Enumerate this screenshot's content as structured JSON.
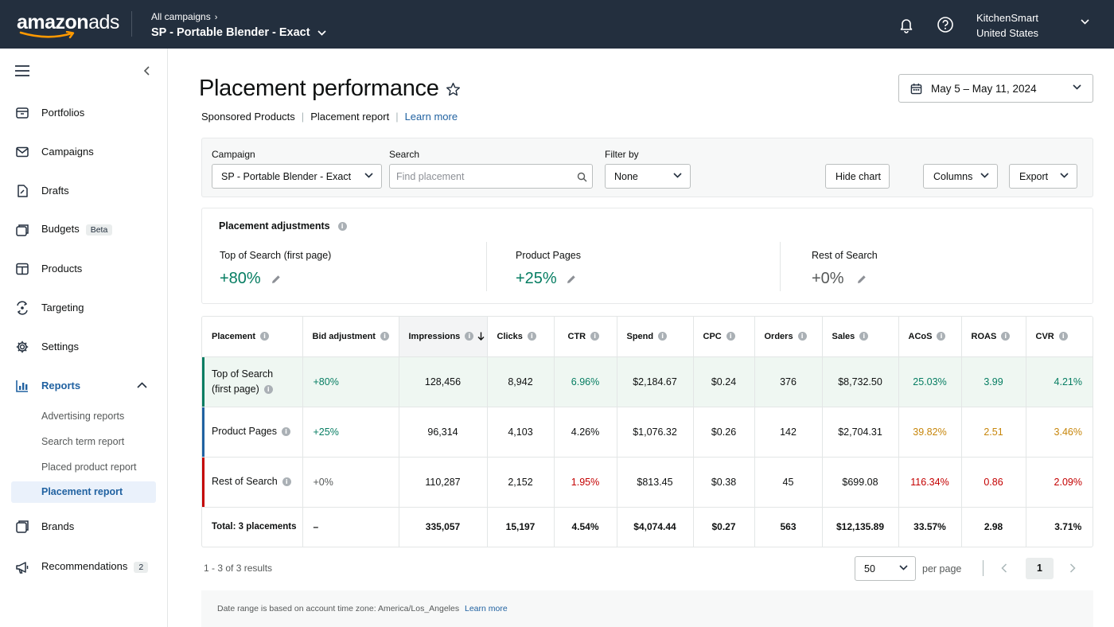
{
  "header": {
    "logo_text": "amazon",
    "logo_suffix": "ads",
    "breadcrumb": "All campaigns",
    "campaign_title": "SP - Portable Blender - Exact",
    "account_name": "KitchenSmart",
    "account_region": "United States"
  },
  "sidebar": {
    "items": [
      {
        "label": "Portfolios",
        "icon": "portfolio-icon"
      },
      {
        "label": "Campaigns",
        "icon": "campaigns-icon"
      },
      {
        "label": "Drafts",
        "icon": "drafts-icon"
      },
      {
        "label": "Budgets",
        "icon": "budgets-icon",
        "badge": "Beta"
      },
      {
        "label": "Products",
        "icon": "products-icon"
      },
      {
        "label": "Targeting",
        "icon": "targeting-icon"
      },
      {
        "label": "Settings",
        "icon": "settings-icon"
      },
      {
        "label": "Reports",
        "icon": "reports-icon"
      },
      {
        "label": "Brands",
        "icon": "brands-icon"
      },
      {
        "label": "Recommendations",
        "icon": "recommendations-icon",
        "badge": "2"
      }
    ],
    "report_subitems": [
      "Advertising reports",
      "Search term report",
      "Placed product report",
      "Placement report"
    ]
  },
  "page": {
    "title": "Placement performance",
    "subnav": {
      "product": "Sponsored Products",
      "report": "Placement report",
      "learn_more": "Learn more"
    },
    "date_range": "May 5 – May 11, 2024"
  },
  "filters": {
    "campaign_label": "Campaign",
    "campaign_value": "SP - Portable Blender - Exact",
    "search_label": "Search",
    "search_placeholder": "Find placement",
    "filter_label": "Filter by",
    "filter_value": "None",
    "hide_chart": "Hide chart",
    "columns": "Columns",
    "export": "Export"
  },
  "adjustments": {
    "title": "Placement adjustments",
    "items": [
      {
        "label": "Top of Search (first page)",
        "value": "+80%",
        "color": "#067d62"
      },
      {
        "label": "Product Pages",
        "value": "+25%",
        "color": "#067d62"
      },
      {
        "label": "Rest of Search",
        "value": "+0%",
        "color": "#565959"
      }
    ]
  },
  "table": {
    "columns": [
      "Placement",
      "Bid adjustment",
      "Impressions",
      "Clicks",
      "CTR",
      "Spend",
      "CPC",
      "Orders",
      "Sales",
      "ACoS",
      "ROAS",
      "CVR"
    ],
    "rows": [
      {
        "placement_line1": "Top of Search",
        "placement_line2": "(first page)",
        "bid": "+80%",
        "impressions": "128,456",
        "clicks": "8,942",
        "ctr": "6.96%",
        "spend": "$2,184.67",
        "cpc": "$0.24",
        "orders": "376",
        "sales": "$8,732.50",
        "acos": "25.03%",
        "roas": "3.99",
        "cvr": "4.21%"
      },
      {
        "placement_line1": "Product Pages",
        "placement_line2": "",
        "bid": "+25%",
        "impressions": "96,314",
        "clicks": "4,103",
        "ctr": "4.26%",
        "spend": "$1,076.32",
        "cpc": "$0.26",
        "orders": "142",
        "sales": "$2,704.31",
        "acos": "39.82%",
        "roas": "2.51",
        "cvr": "3.46%"
      },
      {
        "placement_line1": "Rest of Search",
        "placement_line2": "",
        "bid": "+0%",
        "impressions": "110,287",
        "clicks": "2,152",
        "ctr": "1.95%",
        "spend": "$813.45",
        "cpc": "$0.38",
        "orders": "45",
        "sales": "$699.08",
        "acos": "116.34%",
        "roas": "0.86",
        "cvr": "2.09%"
      }
    ],
    "total": {
      "label": "Total: 3 placements",
      "bid": "–",
      "impressions": "335,057",
      "clicks": "15,197",
      "ctr": "4.54%",
      "spend": "$4,074.44",
      "cpc": "$0.27",
      "orders": "563",
      "sales": "$12,135.89",
      "acos": "33.57%",
      "roas": "2.98",
      "cvr": "3.71%"
    }
  },
  "pagination": {
    "results": "1 - 3 of 3 results",
    "per_page_value": "50",
    "per_page_label": "per page",
    "current_page": "1"
  },
  "footer": {
    "note": "Date range is based on account time zone: America/Los_Angeles",
    "learn_more": "Learn more"
  },
  "colors": {
    "topbar": "#232f3e",
    "link": "#2162a1",
    "good": "#067d62",
    "warn": "#c7860b",
    "bad": "#c40000",
    "bar_top": "#067d62",
    "bar_product": "#2162a1",
    "bar_rest": "#c40000"
  }
}
